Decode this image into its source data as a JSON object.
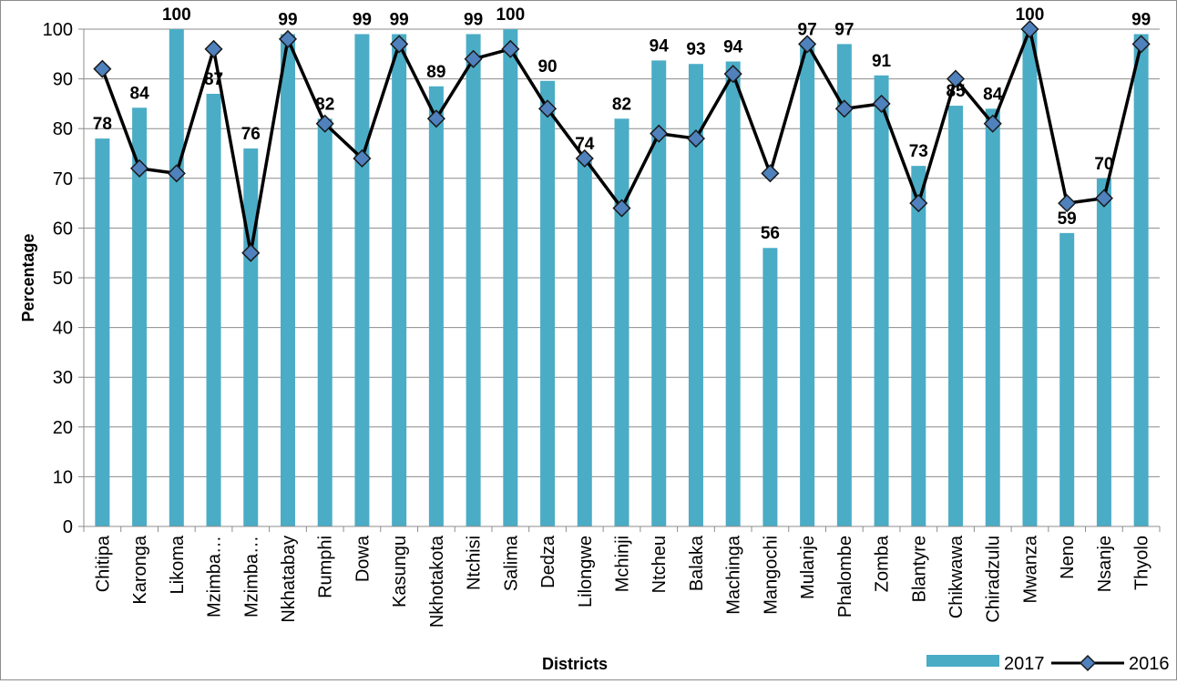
{
  "chart_data": {
    "type": "bar",
    "xlabel": "Districts",
    "ylabel": "Percentage",
    "ylim": [
      0,
      100
    ],
    "yticks": [
      0,
      10,
      20,
      30,
      40,
      50,
      60,
      70,
      80,
      90,
      100
    ],
    "grid": true,
    "legend_position": "bottom-right",
    "categories": [
      "Chitipa",
      "Karonga",
      "Likoma",
      "Mzimba…",
      "Mzimba…",
      "Nkhatabay",
      "Rumphi",
      "Dowa",
      "Kasungu",
      "Nkhotakota",
      "Ntchisi",
      "Salima",
      "Dedza",
      "Lilongwe",
      "Mchinji",
      "Ntcheu",
      "Balaka",
      "Machinga",
      "Mangochi",
      "Mulanje",
      "Phalombe",
      "Zomba",
      "Blantyre",
      "Chikwawa",
      "Chiradzulu",
      "Mwanza",
      "Neno",
      "Nsanje",
      "Thyolo"
    ],
    "series": [
      {
        "name": "2017",
        "type": "bar",
        "color": "#4BACC6",
        "values": [
          78,
          84.2,
          100,
          87,
          76,
          99,
          82,
          99,
          99,
          88.5,
          99,
          100,
          89.6,
          74,
          82,
          93.7,
          93,
          93.5,
          56,
          97,
          97,
          90.7,
          72.5,
          84.6,
          84,
          100,
          59,
          70,
          99
        ],
        "labels": [
          "78",
          "84",
          "100",
          "87",
          "76",
          "99",
          "82",
          "99",
          "99",
          "89",
          "99",
          "100",
          "90",
          "74",
          "82",
          "94",
          "93",
          "94",
          "56",
          "97",
          "97",
          "91",
          "73",
          "85",
          "84",
          "100",
          "59",
          "70",
          "99"
        ]
      },
      {
        "name": "2016",
        "type": "line",
        "color": "#000000",
        "marker_color": "#4F81BD",
        "values": [
          92,
          72,
          71,
          96,
          55,
          98,
          81,
          74,
          97,
          82,
          94,
          96,
          84,
          74,
          64,
          79,
          78,
          91,
          71,
          97,
          84,
          85,
          65,
          90,
          81,
          100,
          65,
          66,
          97
        ]
      }
    ]
  }
}
